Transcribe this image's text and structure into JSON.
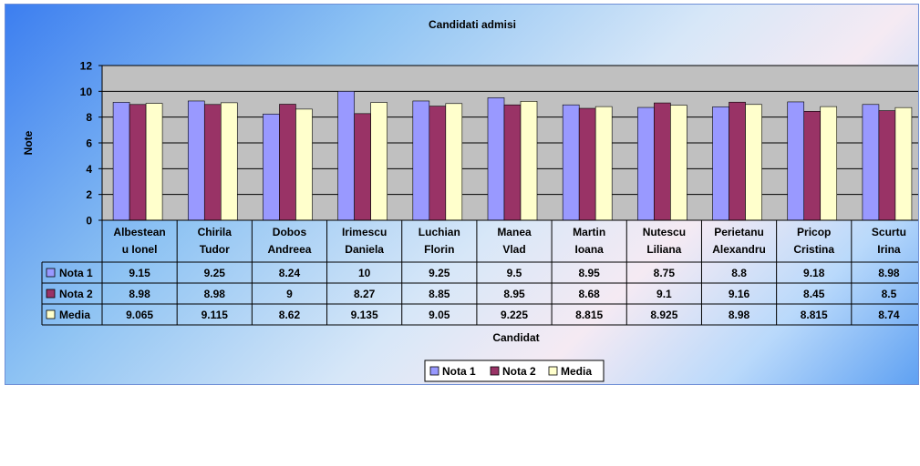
{
  "chart_data": {
    "type": "bar",
    "title": "Candidati admisi",
    "xlabel": "Candidat",
    "ylabel": "Note",
    "ylim": [
      0,
      12
    ],
    "yticks": [
      "0",
      "2",
      "4",
      "6",
      "8",
      "10",
      "12"
    ],
    "grid": true,
    "legend_position": "bottom",
    "categories": [
      [
        "Albestean",
        "u Ionel"
      ],
      [
        "Chirila",
        "Tudor"
      ],
      [
        "Dobos",
        "Andreea"
      ],
      [
        "Irimescu",
        "Daniela"
      ],
      [
        "Luchian",
        "Florin"
      ],
      [
        "Manea",
        "Vlad"
      ],
      [
        "Martin",
        "Ioana"
      ],
      [
        "Nutescu",
        "Liliana"
      ],
      [
        "Perietanu",
        "Alexandru"
      ],
      [
        "Pricop",
        "Cristina"
      ],
      [
        "Scurtu",
        "Irina"
      ]
    ],
    "series": [
      {
        "name": "Nota 1",
        "color": "#9999ff",
        "values": [
          9.15,
          9.25,
          8.24,
          10,
          9.25,
          9.5,
          8.95,
          8.75,
          8.8,
          9.18,
          8.98
        ],
        "labels": [
          "9.15",
          "9.25",
          "8.24",
          "10",
          "9.25",
          "9.5",
          "8.95",
          "8.75",
          "8.8",
          "9.18",
          "8.98"
        ]
      },
      {
        "name": "Nota 2",
        "color": "#993366",
        "values": [
          8.98,
          8.98,
          9,
          8.27,
          8.85,
          8.95,
          8.68,
          9.1,
          9.16,
          8.45,
          8.5
        ],
        "labels": [
          "8.98",
          "8.98",
          "9",
          "8.27",
          "8.85",
          "8.95",
          "8.68",
          "9.1",
          "9.16",
          "8.45",
          "8.5"
        ]
      },
      {
        "name": "Media",
        "color": "#ffffcc",
        "values": [
          9.065,
          9.115,
          8.62,
          9.135,
          9.05,
          9.225,
          8.815,
          8.925,
          8.98,
          8.815,
          8.74
        ],
        "labels": [
          "9.065",
          "9.115",
          "8.62",
          "9.135",
          "9.05",
          "9.225",
          "8.815",
          "8.925",
          "8.98",
          "8.815",
          "8.74"
        ]
      }
    ]
  }
}
